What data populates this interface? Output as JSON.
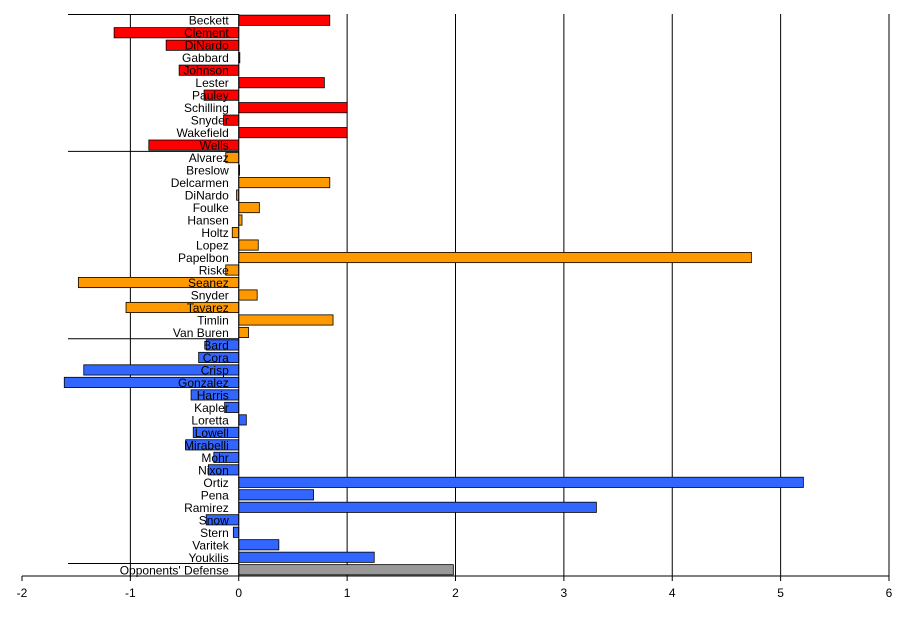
{
  "chart_data": {
    "type": "bar",
    "orientation": "horizontal",
    "title": "",
    "xlabel": "",
    "ylabel": "",
    "xlim": [
      -2,
      6
    ],
    "xticks": [
      -2,
      -1,
      0,
      1,
      2,
      3,
      4,
      5,
      6
    ],
    "grid": "vertical",
    "legend": "none",
    "groups": [
      {
        "color": "#ff0000",
        "items": [
          {
            "label": "Beckett",
            "value": 0.84
          },
          {
            "label": "Clement",
            "value": -1.15
          },
          {
            "label": "DiNardo",
            "value": -0.67
          },
          {
            "label": "Gabbard",
            "value": 0.01
          },
          {
            "label": "Johnson",
            "value": -0.55
          },
          {
            "label": "Lester",
            "value": 0.79
          },
          {
            "label": "Pauley",
            "value": -0.32
          },
          {
            "label": "Schilling",
            "value": 1.0
          },
          {
            "label": "Snyder",
            "value": -0.14
          },
          {
            "label": "Wakefield",
            "value": 1.0
          },
          {
            "label": "Wells",
            "value": -0.83
          }
        ]
      },
      {
        "color": "#ff9900",
        "items": [
          {
            "label": "Alvarez",
            "value": -0.12
          },
          {
            "label": "Breslow",
            "value": 0.0
          },
          {
            "label": "Delcarmen",
            "value": 0.84
          },
          {
            "label": "DiNardo",
            "value": -0.02
          },
          {
            "label": "Foulke",
            "value": 0.19
          },
          {
            "label": "Hansen",
            "value": 0.03
          },
          {
            "label": "Holtz",
            "value": -0.06
          },
          {
            "label": "Lopez",
            "value": 0.18
          },
          {
            "label": "Papelbon",
            "value": 4.73
          },
          {
            "label": "Riske",
            "value": -0.12
          },
          {
            "label": "Seanez",
            "value": -1.48
          },
          {
            "label": "Snyder",
            "value": 0.17
          },
          {
            "label": "Tavarez",
            "value": -1.04
          },
          {
            "label": "Timlin",
            "value": 0.87
          },
          {
            "label": "Van Buren",
            "value": 0.09
          }
        ]
      },
      {
        "color": "#3366ff",
        "items": [
          {
            "label": "Bard",
            "value": -0.3
          },
          {
            "label": "Cora",
            "value": -0.37
          },
          {
            "label": "Crisp",
            "value": -1.43
          },
          {
            "label": "Gonzalez",
            "value": -1.61
          },
          {
            "label": "Harris",
            "value": -0.44
          },
          {
            "label": "Kapler",
            "value": -0.13
          },
          {
            "label": "Loretta",
            "value": 0.07
          },
          {
            "label": "Lowell",
            "value": -0.42
          },
          {
            "label": "Mirabelli",
            "value": -0.49
          },
          {
            "label": "Mohr",
            "value": -0.23
          },
          {
            "label": "Nixon",
            "value": -0.28
          },
          {
            "label": "Ortiz",
            "value": 5.21
          },
          {
            "label": "Pena",
            "value": 0.69
          },
          {
            "label": "Ramirez",
            "value": 3.3
          },
          {
            "label": "Snow",
            "value": -0.3
          },
          {
            "label": "Stern",
            "value": -0.05
          },
          {
            "label": "Varitek",
            "value": 0.37
          },
          {
            "label": "Youkilis",
            "value": 1.25
          }
        ]
      },
      {
        "color": "#999999",
        "items": [
          {
            "label": "Opponents' Defense",
            "value": 1.98
          }
        ]
      }
    ]
  }
}
